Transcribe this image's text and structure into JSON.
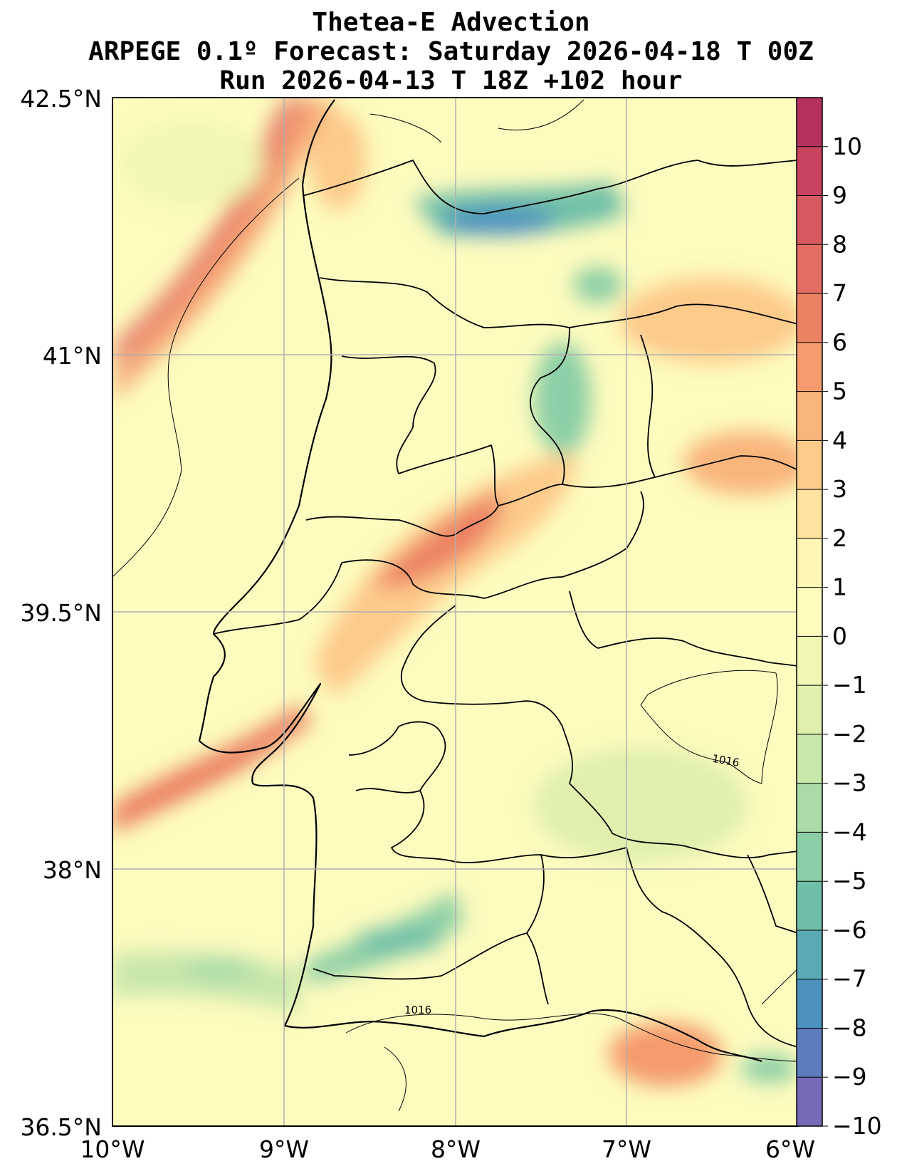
{
  "title": {
    "line1": "Thetea-E Advection",
    "line2": "ARPEGE 0.1º Forecast: Saturday 2026-04-18 T 00Z",
    "line3": "Run 2026-04-13 T 18Z +102 hour"
  },
  "axes": {
    "lat_ticks": [
      "42.5°N",
      "41°N",
      "39.5°N",
      "38°N",
      "36.5°N"
    ],
    "lon_ticks": [
      "10°W",
      "9°W",
      "8°W",
      "7°W",
      "6°W"
    ],
    "lat_range": [
      36.5,
      42.5
    ],
    "lon_range": [
      -10,
      -6
    ],
    "grid": true
  },
  "colorbar": {
    "ticks": [
      "10",
      "9",
      "8",
      "7",
      "6",
      "5",
      "4",
      "3",
      "2",
      "1",
      "0",
      "−1",
      "−2",
      "−3",
      "−4",
      "−5",
      "−6",
      "−7",
      "−8",
      "−9",
      "−10"
    ],
    "colors_top_to_bottom": [
      "#b5325e",
      "#c7435e",
      "#d75a60",
      "#e36d62",
      "#ec8264",
      "#f59b6d",
      "#f9b57b",
      "#fdcb8a",
      "#fee3a0",
      "#fff5b5",
      "#fdfbbe",
      "#f0f7b4",
      "#dff0ae",
      "#c8e7aa",
      "#abdca8",
      "#8ccfa6",
      "#6fbfa8",
      "#5aa9b4",
      "#4b92c0",
      "#5d7cbe",
      "#7669b5"
    ]
  },
  "isobars": {
    "label_north": "1016",
    "label_south": "1016"
  },
  "field_blobs": [
    {
      "lon": -9.45,
      "lat": 41.7,
      "value": 6
    },
    {
      "lon": -8.85,
      "lat": 42.35,
      "value": 7
    },
    {
      "lon": -7.7,
      "lat": 42.2,
      "value": -8
    },
    {
      "lon": -7.25,
      "lat": 41.6,
      "value": -5
    },
    {
      "lon": -7.3,
      "lat": 40.7,
      "value": -6
    },
    {
      "lon": -8.15,
      "lat": 39.6,
      "value": 5
    },
    {
      "lon": -8.5,
      "lat": 39.4,
      "value": 4
    },
    {
      "lon": -6.2,
      "lat": 40.25,
      "value": 5
    },
    {
      "lon": -6.8,
      "lat": 41.45,
      "value": 4
    },
    {
      "lon": -9.5,
      "lat": 38.45,
      "value": 6
    },
    {
      "lon": -8.1,
      "lat": 37.3,
      "value": -6
    },
    {
      "lon": -9.2,
      "lat": 37.4,
      "value": -4
    },
    {
      "lon": -6.75,
      "lat": 36.95,
      "value": 5
    },
    {
      "lon": -6.4,
      "lat": 38.6,
      "value": -2
    }
  ]
}
